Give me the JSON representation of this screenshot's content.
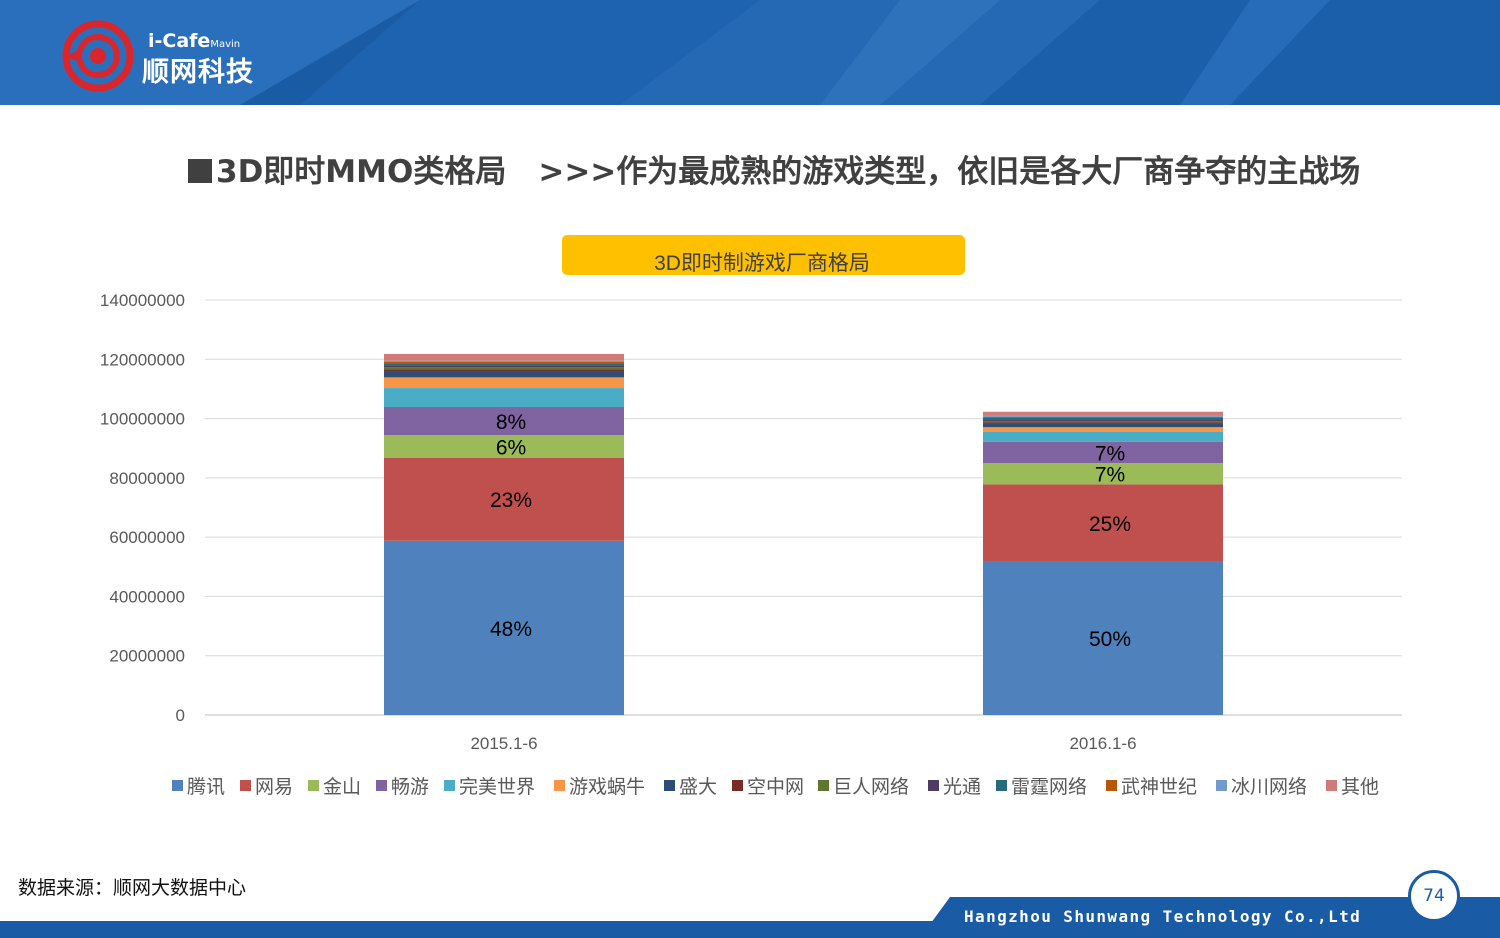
{
  "logo": {
    "brand_small": "i-Cafe",
    "brand_small_suffix": "Mavin",
    "brand_main": "顺网科技"
  },
  "headline": {
    "part1": "3D即时MMO类格局",
    "part2": ">>>作为最成熟的游戏类型，依旧是各大厂商争夺的主战场"
  },
  "colors": {
    "header_blue": "#1a5ba6",
    "title_badge": "#ffc000"
  },
  "chart_data": {
    "type": "bar",
    "stacked": true,
    "title": "3D即时制游戏厂商格局",
    "categories": [
      "2015.1-6",
      "2016.1-6"
    ],
    "ylim": [
      0,
      140000000
    ],
    "yticks": [
      "0",
      "20000000",
      "40000000",
      "60000000",
      "80000000",
      "100000000",
      "120000000",
      "140000000"
    ],
    "grid": true,
    "legend_position": "bottom",
    "series": [
      {
        "name": "腾讯",
        "color": "#4f81bd",
        "values": [
          58800000,
          51800000
        ],
        "labels": [
          "48%",
          "50%"
        ]
      },
      {
        "name": "网易",
        "color": "#c0504d",
        "values": [
          28000000,
          26000000
        ],
        "labels": [
          "23%",
          "25%"
        ]
      },
      {
        "name": "金山",
        "color": "#9bbb59",
        "values": [
          7600000,
          7200000
        ],
        "labels": [
          "6%",
          "7%"
        ]
      },
      {
        "name": "畅游",
        "color": "#8064a2",
        "values": [
          9500000,
          7200000
        ],
        "labels": [
          "8%",
          "7%"
        ]
      },
      {
        "name": "完美世界",
        "color": "#4bacc6",
        "values": [
          6400000,
          3400000
        ],
        "labels": [
          "",
          ""
        ]
      },
      {
        "name": "游戏蜗牛",
        "color": "#f79646",
        "values": [
          3600000,
          1500000
        ],
        "labels": [
          "",
          ""
        ]
      },
      {
        "name": "盛大",
        "color": "#2c4d75",
        "values": [
          2000000,
          1100000
        ],
        "labels": [
          "",
          ""
        ]
      },
      {
        "name": "空中网",
        "color": "#772c2a",
        "values": [
          700000,
          500000
        ],
        "labels": [
          "",
          ""
        ]
      },
      {
        "name": "巨人网络",
        "color": "#5f7530",
        "values": [
          700000,
          500000
        ],
        "labels": [
          "",
          ""
        ]
      },
      {
        "name": "光通",
        "color": "#4d3b62",
        "values": [
          700000,
          500000
        ],
        "labels": [
          "",
          ""
        ]
      },
      {
        "name": "雷霆网络",
        "color": "#276a7c",
        "values": [
          700000,
          500000
        ],
        "labels": [
          "",
          ""
        ]
      },
      {
        "name": "武神世纪",
        "color": "#b65708",
        "values": [
          500000,
          400000
        ],
        "labels": [
          "",
          ""
        ]
      },
      {
        "name": "冰川网络",
        "color": "#729aca",
        "values": [
          300000,
          400000
        ],
        "labels": [
          "",
          ""
        ]
      },
      {
        "name": "其他",
        "color": "#d07b7a",
        "values": [
          2300000,
          1300000
        ],
        "labels": [
          "",
          ""
        ]
      }
    ]
  },
  "source": "数据来源：顺网大数据中心",
  "footer": {
    "company": "Hangzhou Shunwang Technology Co.,Ltd",
    "page_number": "74"
  }
}
